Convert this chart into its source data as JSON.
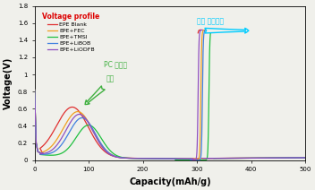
{
  "title": "Voltage profile",
  "xlabel": "Capacity(mAh/g)",
  "ylabel": "Voltage(V)",
  "xlim": [
    0,
    500
  ],
  "ylim": [
    0,
    1.8
  ],
  "yticks": [
    0,
    0.2,
    0.4,
    0.6,
    0.8,
    1.0,
    1.2,
    1.4,
    1.6,
    1.8
  ],
  "xticks": [
    0,
    100,
    200,
    300,
    400,
    500
  ],
  "legend_entries": [
    "EPE Blank",
    "EPE+FEC",
    "EPE+TMSI",
    "EPE+LiBOB",
    "EPE+LiODFB"
  ],
  "line_colors": [
    "#e03030",
    "#f0a020",
    "#20c040",
    "#4080e0",
    "#9050c0"
  ],
  "annotation_discharge": "방전 용량증가",
  "annotation_pc1": "PC 비가역",
  "annotation_pc2": "감소",
  "bg_color": "#f0f0eb",
  "arrow_discharge_color": "#00ccff",
  "arrow_pc_color": "#40b040",
  "title_color": "#dd0000"
}
